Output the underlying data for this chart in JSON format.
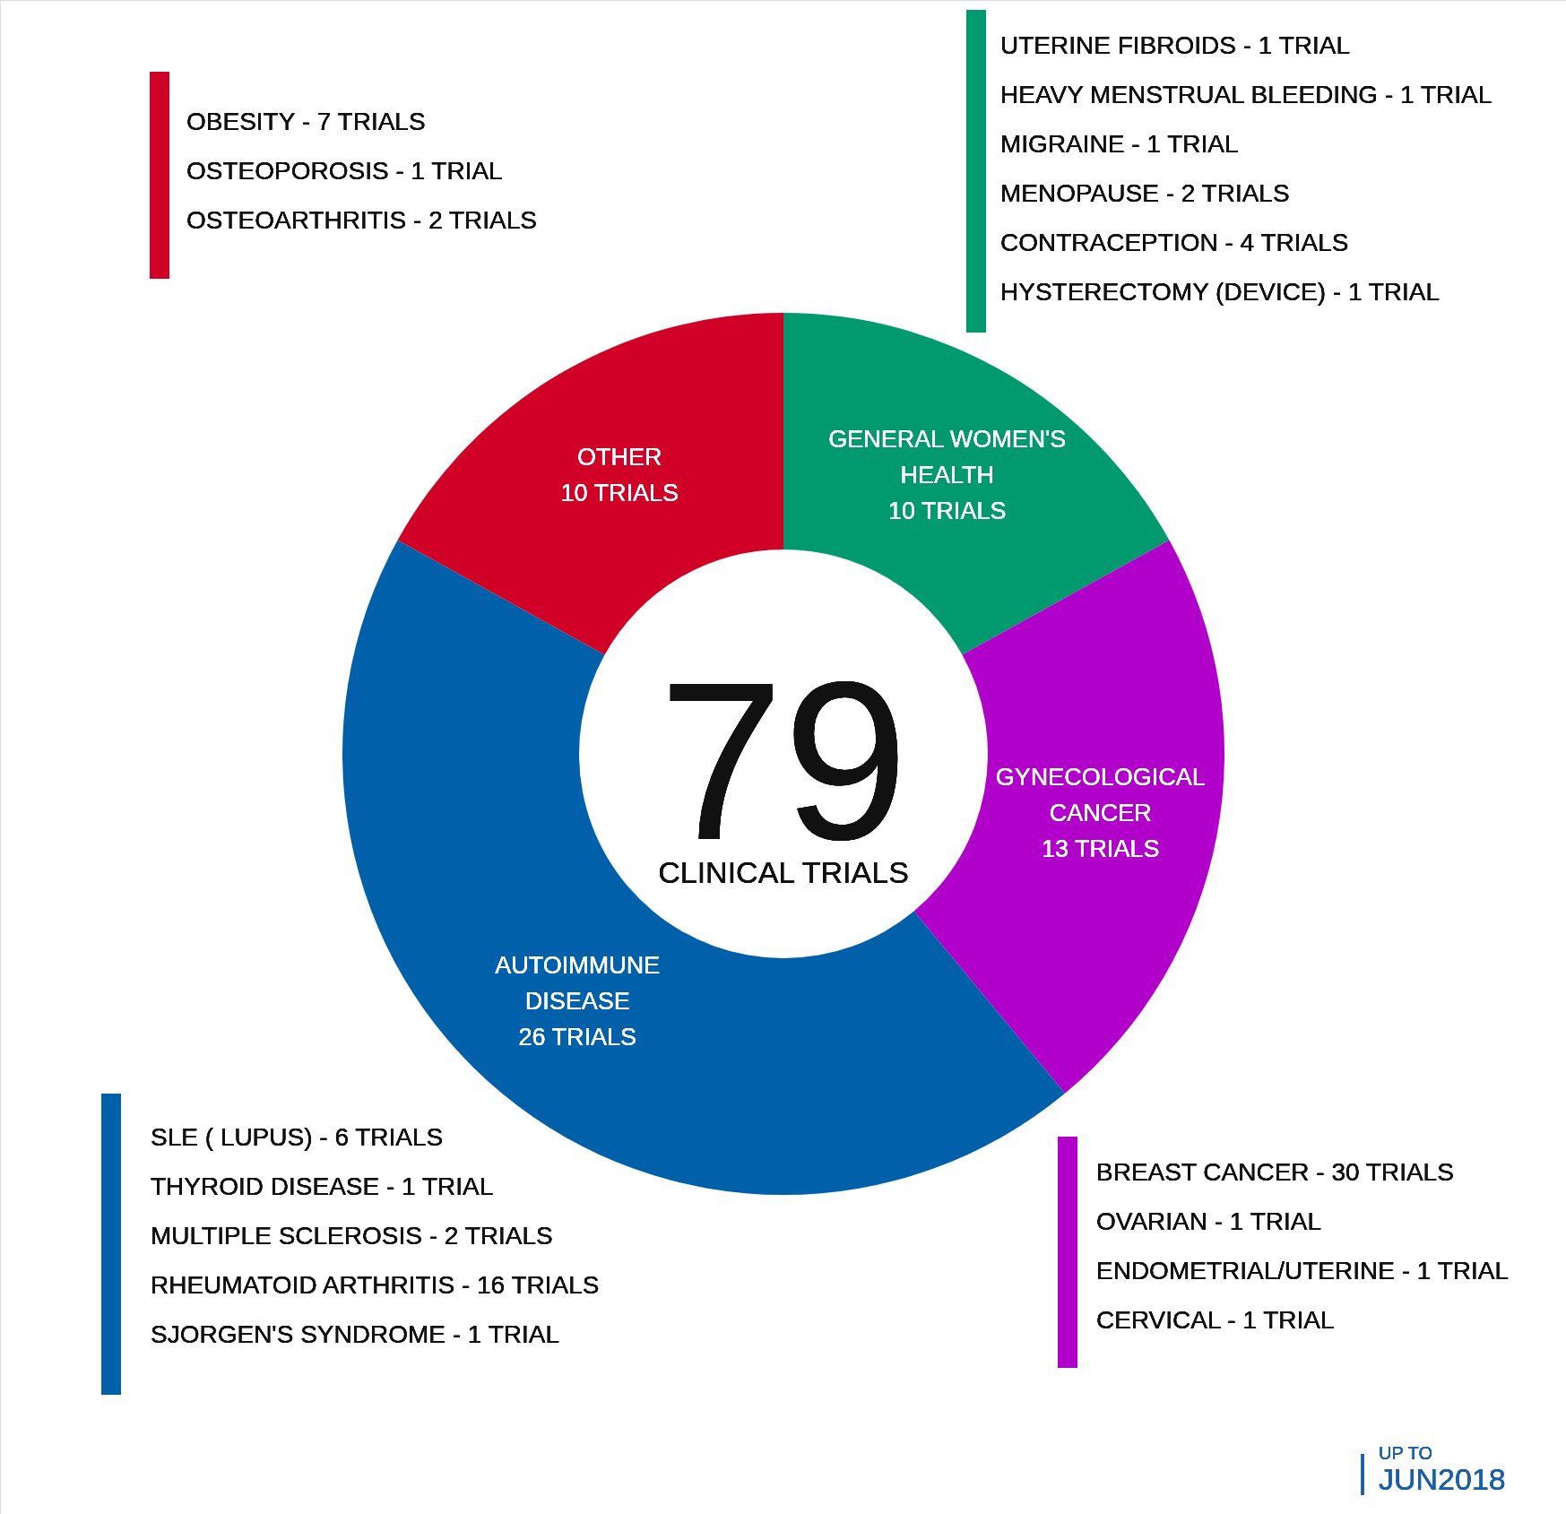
{
  "chart_data": {
    "type": "donut",
    "categories": [
      "GENERAL WOMEN'S HEALTH",
      "GYNECOLOGICAL CANCER",
      "AUTOIMMUNE DISEASE",
      "OTHER"
    ],
    "values": [
      10,
      13,
      26,
      10
    ],
    "value_labels": [
      "10 TRIALS",
      "13 TRIALS",
      "26 TRIALS",
      "10 TRIALS"
    ],
    "colors": [
      "#009a6e",
      "#b100c9",
      "#0061aa",
      "#d10027"
    ],
    "annotations": [
      "79",
      "CLINICAL TRIALS",
      "OBESITY - 7 TRIALS",
      "OSTEOPOROSIS - 1 TRIAL",
      "OSTEOARTHRITIS - 2 TRIALS",
      "UTERINE FIBROIDS - 1 TRIAL",
      "HEAVY MENSTRUAL BLEEDING - 1 TRIAL",
      "MIGRAINE - 1 TRIAL",
      "MENOPAUSE - 2 TRIALS",
      "CONTRACEPTION - 4 TRIALS",
      "HYSTERECTOMY (DEVICE) - 1 TRIAL",
      "SLE ( LUPUS) - 6 TRIALS",
      "THYROID DISEASE - 1 TRIAL",
      "MULTIPLE SCLEROSIS - 2 TRIALS",
      "RHEUMATOID ARTHRITIS - 16 TRIALS",
      "SJORGEN'S SYNDROME - 1 TRIAL",
      "BREAST CANCER - 30 TRIALS",
      "OVARIAN - 1 TRIAL",
      "ENDOMETRIAL/UTERINE - 1 TRIAL",
      "CERVICAL - 1 TRIAL",
      "UP TO",
      "JUN2018"
    ]
  }
}
